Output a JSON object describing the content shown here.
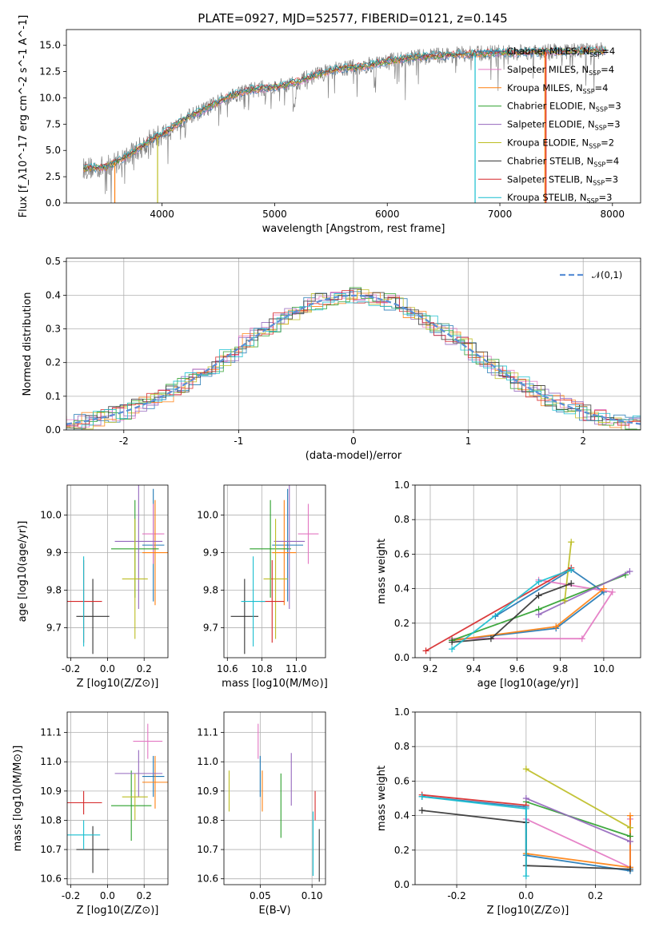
{
  "chart_data": [
    {
      "id": "spectrum",
      "type": "line",
      "title": "PLATE=0927, MJD=52577, FIBERID=0121, z=0.145",
      "xlabel": "wavelength [Angstrom, rest frame]",
      "ylabel": "Flux [f_λ10^-17 erg cm^-2 s^-1 A^-1]",
      "xlim": [
        3150,
        8250
      ],
      "ylim": [
        0,
        16.5
      ],
      "xticks": [
        4000,
        5000,
        6000,
        7000,
        8000
      ],
      "yticks": [
        0.0,
        2.5,
        5.0,
        7.5,
        10.0,
        12.5,
        15.0
      ],
      "grid": false,
      "legend_position": "top-right",
      "series": [
        {
          "name": "Chabrier MILES, N_SSP=4",
          "color": "#1f77b4"
        },
        {
          "name": "Salpeter MILES, N_SSP=4",
          "color": "#e377c2"
        },
        {
          "name": "Kroupa MILES, N_SSP=4",
          "color": "#ff7f0e"
        },
        {
          "name": "Chabrier ELODIE, N_SSP=3",
          "color": "#2ca02c"
        },
        {
          "name": "Salpeter ELODIE, N_SSP=3",
          "color": "#9467bd"
        },
        {
          "name": "Kroupa ELODIE, N_SSP=2",
          "color": "#bcbd22"
        },
        {
          "name": "Chabrier STELIB, N_SSP=4",
          "color": "#333333"
        },
        {
          "name": "Salpeter STELIB, N_SSP=3",
          "color": "#d62728"
        },
        {
          "name": "Kroupa STELIB, N_SSP=3",
          "color": "#17becf"
        }
      ],
      "envelope": {
        "x": [
          3300,
          3500,
          3700,
          3900,
          4000,
          4200,
          4400,
          4600,
          4800,
          5000,
          5200,
          5400,
          5600,
          5800,
          6000,
          6200,
          6400,
          6600,
          6800,
          7000,
          7200,
          7400,
          7600,
          7800,
          7950
        ],
        "y": [
          3.3,
          3.4,
          4.5,
          6.0,
          6.5,
          8.0,
          9.0,
          10.2,
          10.8,
          11.0,
          11.5,
          12.3,
          12.8,
          13.0,
          13.5,
          13.8,
          14.0,
          14.1,
          14.2,
          14.3,
          14.3,
          14.4,
          14.4,
          14.5,
          14.5
        ]
      }
    },
    {
      "id": "residuals",
      "type": "histogram",
      "xlabel": "(data-model)/error",
      "ylabel": "Normed distribution",
      "xlim": [
        -2.5,
        2.5
      ],
      "ylim": [
        0,
        0.51
      ],
      "xticks": [
        -2,
        -1,
        0,
        1,
        2
      ],
      "yticks": [
        0.0,
        0.1,
        0.2,
        0.3,
        0.4,
        0.5
      ],
      "grid": true,
      "legend_position": "top-right",
      "legend_label": "𝒩(0,1)",
      "curve_color": "#5b8fd6"
    },
    {
      "id": "age_vs_Z",
      "type": "scatter",
      "xlabel": "Z [log10(Z/Z⊙)]",
      "ylabel": "age [log10(age/yr)]",
      "xlim": [
        -0.22,
        0.33
      ],
      "ylim": [
        9.62,
        10.08
      ],
      "xticks": [
        -0.2,
        0.0,
        0.2
      ],
      "yticks": [
        9.7,
        9.8,
        9.9,
        10.0
      ],
      "grid": true,
      "points": [
        {
          "color": "#1f77b4",
          "x": 0.25,
          "xerr": 0.06,
          "y": 9.92,
          "yerr": 0.15
        },
        {
          "color": "#e377c2",
          "x": 0.25,
          "xerr": 0.06,
          "y": 9.95,
          "yerr": 0.08
        },
        {
          "color": "#ff7f0e",
          "x": 0.26,
          "xerr": 0.07,
          "y": 9.9,
          "yerr": 0.14
        },
        {
          "color": "#2ca02c",
          "x": 0.15,
          "xerr": 0.13,
          "y": 9.91,
          "yerr": 0.13
        },
        {
          "color": "#9467bd",
          "x": 0.17,
          "xerr": 0.13,
          "y": 9.93,
          "yerr": 0.18
        },
        {
          "color": "#bcbd22",
          "x": 0.15,
          "xerr": 0.07,
          "y": 9.83,
          "yerr": 0.16
        },
        {
          "color": "#333333",
          "x": -0.08,
          "xerr": 0.09,
          "y": 9.73,
          "yerr": 0.1
        },
        {
          "color": "#d62728",
          "x": -0.13,
          "xerr": 0.1,
          "y": 9.77,
          "yerr": 0.11
        },
        {
          "color": "#17becf",
          "x": -0.13,
          "xerr": 0.0,
          "y": 9.77,
          "yerr": 0.12
        }
      ]
    },
    {
      "id": "age_vs_mass",
      "type": "scatter",
      "xlabel": "mass [log10(M/M⊙)]",
      "ylabel": "",
      "xlim": [
        10.58,
        11.17
      ],
      "ylim": [
        9.62,
        10.08
      ],
      "xticks": [
        10.6,
        10.8,
        11.0
      ],
      "yticks": [
        9.7,
        9.8,
        9.9,
        10.0
      ],
      "grid": true,
      "points": [
        {
          "color": "#1f77b4",
          "x": 10.95,
          "xerr": 0.09,
          "y": 9.92,
          "yerr": 0.15
        },
        {
          "color": "#e377c2",
          "x": 11.07,
          "xerr": 0.06,
          "y": 9.95,
          "yerr": 0.08
        },
        {
          "color": "#ff7f0e",
          "x": 10.93,
          "xerr": 0.07,
          "y": 9.9,
          "yerr": 0.14
        },
        {
          "color": "#2ca02c",
          "x": 10.85,
          "xerr": 0.12,
          "y": 9.91,
          "yerr": 0.13
        },
        {
          "color": "#9467bd",
          "x": 10.96,
          "xerr": 0.09,
          "y": 9.93,
          "yerr": 0.18
        },
        {
          "color": "#bcbd22",
          "x": 10.88,
          "xerr": 0.07,
          "y": 9.83,
          "yerr": 0.16
        },
        {
          "color": "#333333",
          "x": 10.7,
          "xerr": 0.08,
          "y": 9.73,
          "yerr": 0.1
        },
        {
          "color": "#d62728",
          "x": 10.86,
          "xerr": 0.07,
          "y": 9.77,
          "yerr": 0.11
        },
        {
          "color": "#17becf",
          "x": 10.75,
          "xerr": 0.07,
          "y": 9.77,
          "yerr": 0.12
        }
      ]
    },
    {
      "id": "mass_weight_vs_age",
      "type": "line",
      "xlabel": "age [log10(age/yr)]",
      "ylabel": "mass weight",
      "xlim": [
        9.13,
        10.17
      ],
      "ylim": [
        0,
        1.0
      ],
      "xticks": [
        9.2,
        9.4,
        9.6,
        9.8,
        10.0
      ],
      "yticks": [
        0.0,
        0.2,
        0.4,
        0.6,
        0.8,
        1.0
      ],
      "grid": true,
      "series": [
        {
          "color": "#1f77b4",
          "x": [
            9.3,
            9.78,
            10.0,
            9.85,
            9.5
          ],
          "y": [
            0.1,
            0.17,
            0.38,
            0.51,
            0.24
          ]
        },
        {
          "color": "#e377c2",
          "x": [
            9.3,
            9.9,
            10.04,
            9.7
          ],
          "y": [
            0.11,
            0.11,
            0.38,
            0.45
          ]
        },
        {
          "color": "#ff7f0e",
          "x": [
            9.3,
            9.78,
            10.0
          ],
          "y": [
            0.1,
            0.18,
            0.4
          ]
        },
        {
          "color": "#2ca02c",
          "x": [
            9.3,
            9.7,
            10.1
          ],
          "y": [
            0.1,
            0.28,
            0.48
          ]
        },
        {
          "color": "#9467bd",
          "x": [
            9.7,
            10.12
          ],
          "y": [
            0.25,
            0.5
          ]
        },
        {
          "color": "#bcbd22",
          "x": [
            9.82,
            9.85
          ],
          "y": [
            0.33,
            0.67
          ]
        },
        {
          "color": "#333333",
          "x": [
            9.3,
            9.48,
            9.7,
            9.85
          ],
          "y": [
            0.09,
            0.11,
            0.36,
            0.43
          ]
        },
        {
          "color": "#d62728",
          "x": [
            9.18,
            9.85
          ],
          "y": [
            0.04,
            0.52
          ]
        },
        {
          "color": "#17becf",
          "x": [
            9.3,
            9.7,
            9.85
          ],
          "y": [
            0.05,
            0.44,
            0.51
          ]
        }
      ]
    },
    {
      "id": "mass_vs_Z",
      "type": "scatter",
      "xlabel": "Z [log10(Z/Z⊙)]",
      "ylabel": "mass [log10(M/M⊙)]",
      "xlim": [
        -0.22,
        0.33
      ],
      "ylim": [
        10.58,
        11.17
      ],
      "xticks": [
        -0.2,
        0.0,
        0.2
      ],
      "yticks": [
        10.6,
        10.7,
        10.8,
        10.9,
        11.0,
        11.1
      ],
      "grid": true,
      "points": [
        {
          "color": "#1f77b4",
          "x": 0.25,
          "xerr": 0.06,
          "y": 10.95,
          "yerr": 0.07
        },
        {
          "color": "#e377c2",
          "x": 0.22,
          "xerr": 0.08,
          "y": 11.07,
          "yerr": 0.06
        },
        {
          "color": "#ff7f0e",
          "x": 0.26,
          "xerr": 0.07,
          "y": 10.93,
          "yerr": 0.09
        },
        {
          "color": "#2ca02c",
          "x": 0.13,
          "xerr": 0.11,
          "y": 10.85,
          "yerr": 0.12
        },
        {
          "color": "#9467bd",
          "x": 0.17,
          "xerr": 0.13,
          "y": 10.96,
          "yerr": 0.08
        },
        {
          "color": "#bcbd22",
          "x": 0.15,
          "xerr": 0.07,
          "y": 10.88,
          "yerr": 0.08
        },
        {
          "color": "#333333",
          "x": -0.08,
          "xerr": 0.09,
          "y": 10.7,
          "yerr": 0.08
        },
        {
          "color": "#d62728",
          "x": -0.13,
          "xerr": 0.1,
          "y": 10.86,
          "yerr": 0.04
        },
        {
          "color": "#17becf",
          "x": -0.13,
          "xerr": 0.09,
          "y": 10.75,
          "yerr": 0.05
        }
      ]
    },
    {
      "id": "mass_vs_EBV",
      "type": "scatter",
      "xlabel": "E(B-V)",
      "ylabel": "",
      "xlim": [
        0.015,
        0.113
      ],
      "ylim": [
        10.58,
        11.17
      ],
      "xticks": [
        0.05,
        0.1
      ],
      "yticks": [
        10.6,
        10.7,
        10.8,
        10.9,
        11.0,
        11.1
      ],
      "grid": true,
      "points": [
        {
          "color": "#bcbd22",
          "x": 0.02,
          "xerr": 0,
          "y": 10.9,
          "yerr": 0.07
        },
        {
          "color": "#e377c2",
          "x": 0.048,
          "xerr": 0,
          "y": 11.07,
          "yerr": 0.06
        },
        {
          "color": "#1f77b4",
          "x": 0.05,
          "xerr": 0,
          "y": 10.95,
          "yerr": 0.07
        },
        {
          "color": "#ff7f0e",
          "x": 0.052,
          "xerr": 0,
          "y": 10.9,
          "yerr": 0.07
        },
        {
          "color": "#2ca02c",
          "x": 0.07,
          "xerr": 0,
          "y": 10.85,
          "yerr": 0.11
        },
        {
          "color": "#9467bd",
          "x": 0.08,
          "xerr": 0,
          "y": 10.94,
          "yerr": 0.09
        },
        {
          "color": "#17becf",
          "x": 0.101,
          "xerr": 0,
          "y": 10.72,
          "yerr": 0.11
        },
        {
          "color": "#d62728",
          "x": 0.103,
          "xerr": 0,
          "y": 10.85,
          "yerr": 0.05
        },
        {
          "color": "#333333",
          "x": 0.107,
          "xerr": 0,
          "y": 10.68,
          "yerr": 0.09
        }
      ]
    },
    {
      "id": "mass_weight_vs_Z",
      "type": "line",
      "xlabel": "Z [log10(Z/Z⊙)]",
      "ylabel": "mass weight",
      "xlim": [
        -0.32,
        0.33
      ],
      "ylim": [
        0,
        1.0
      ],
      "xticks": [
        -0.2,
        0.0,
        0.2
      ],
      "yticks": [
        0.0,
        0.2,
        0.4,
        0.6,
        0.8,
        1.0
      ],
      "grid": true,
      "series": [
        {
          "color": "#1f77b4",
          "x": [
            -0.3,
            0.0,
            0.0,
            0.3,
            0.3
          ],
          "y": [
            0.51,
            0.45,
            0.17,
            0.08,
            0.38
          ]
        },
        {
          "color": "#e377c2",
          "x": [
            0.0,
            0.3,
            0.3
          ],
          "y": [
            0.38,
            0.1,
            0.38
          ]
        },
        {
          "color": "#ff7f0e",
          "x": [
            0.0,
            0.3,
            0.3
          ],
          "y": [
            0.18,
            0.1,
            0.4
          ]
        },
        {
          "color": "#2ca02c",
          "x": [
            0.0,
            0.3
          ],
          "y": [
            0.48,
            0.28
          ]
        },
        {
          "color": "#9467bd",
          "x": [
            0.0,
            0.3
          ],
          "y": [
            0.5,
            0.25
          ]
        },
        {
          "color": "#bcbd22",
          "x": [
            0.0,
            0.3
          ],
          "y": [
            0.67,
            0.33
          ]
        },
        {
          "color": "#333333",
          "x": [
            -0.3,
            0.0,
            0.0,
            0.3
          ],
          "y": [
            0.43,
            0.36,
            0.11,
            0.09
          ]
        },
        {
          "color": "#d62728",
          "x": [
            -0.3,
            0.0
          ],
          "y": [
            0.52,
            0.46
          ]
        },
        {
          "color": "#17becf",
          "x": [
            -0.3,
            0.0,
            0.0
          ],
          "y": [
            0.51,
            0.44,
            0.05
          ]
        }
      ]
    }
  ]
}
